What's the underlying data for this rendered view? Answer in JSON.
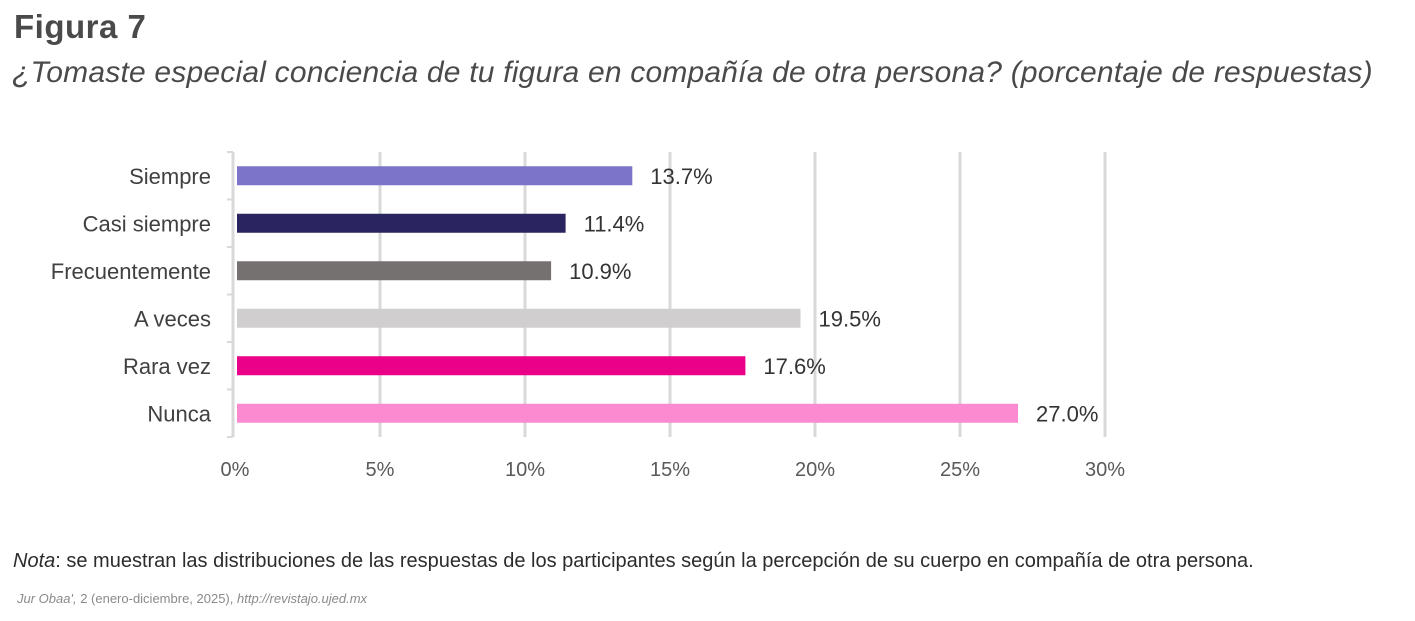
{
  "figure": {
    "label": "Figura 7",
    "title": "¿Tomaste especial conciencia de tu figura en compañía de otra persona? (porcentaje de respuestas)"
  },
  "note": {
    "prefix": "Nota",
    "text": ": se muestran las distribuciones de las respuestas de los participantes según la percepción de su cuerpo en compañía de otra persona."
  },
  "source": {
    "journal": "Jur Obaa',",
    "issue": " 2 (enero-diciembre, 2025), ",
    "url": "http://revistajo.ujed.mx"
  },
  "chart_data": {
    "type": "bar",
    "orientation": "horizontal",
    "title": "¿Tomaste especial conciencia de tu figura en compañía de otra persona? (porcentaje de respuestas)",
    "xlabel": "",
    "ylabel": "",
    "categories": [
      "Siempre",
      "Casi siempre",
      "Frecuentemente",
      "A veces",
      "Rara vez",
      "Nunca"
    ],
    "values": [
      13.7,
      11.4,
      10.9,
      19.5,
      17.6,
      27.0
    ],
    "value_labels": [
      "13.7%",
      "11.4%",
      "10.9%",
      "19.5%",
      "17.6%",
      "27.0%"
    ],
    "colors": [
      "#7b74c9",
      "#2a2561",
      "#767171",
      "#d0cece",
      "#ea0089",
      "#fb8ad0"
    ],
    "xlim": [
      0,
      30
    ],
    "xticks": [
      0,
      5,
      10,
      15,
      20,
      25,
      30
    ],
    "xtick_labels": [
      "0%",
      "5%",
      "10%",
      "15%",
      "20%",
      "25%",
      "30%"
    ],
    "grid": true,
    "legend": "none"
  }
}
